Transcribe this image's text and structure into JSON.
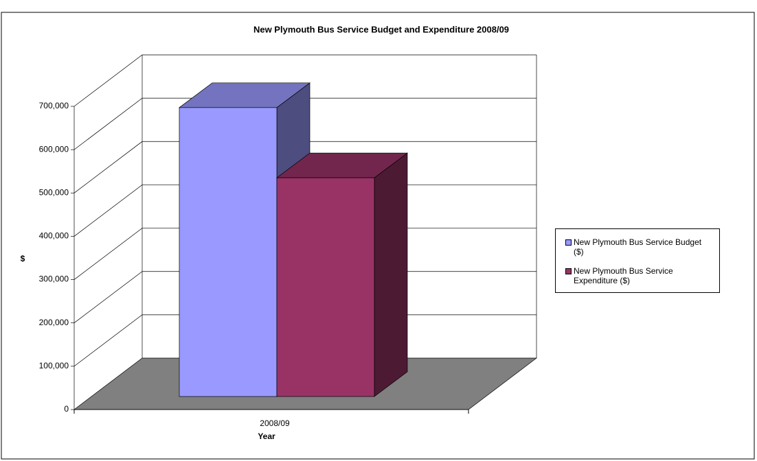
{
  "chart_data": {
    "type": "bar3d",
    "title": "New Plymouth Bus Service Budget and Expenditure 2008/09",
    "categories": [
      "2008/09"
    ],
    "xlabel": "Year",
    "ylabel": "$",
    "series": [
      {
        "name": "New Plymouth Bus Service Budget ($)",
        "color": "#9999ff",
        "values": [
          667000
        ]
      },
      {
        "name": "New Plymouth Bus Service Expenditure ($)",
        "color": "#993366",
        "values": [
          505000
        ]
      }
    ],
    "ylim": [
      0,
      700000
    ],
    "yticks": [
      0,
      {
        "value": 100000,
        "label": "100,000"
      },
      {
        "value": 200000,
        "label": "200,000"
      },
      {
        "value": 300000,
        "label": "300,000"
      },
      {
        "value": 400000,
        "label": "400,000"
      },
      {
        "value": 500000,
        "label": "500,000"
      },
      {
        "value": 600000,
        "label": "600,000"
      },
      {
        "value": 700000,
        "label": "700,000"
      }
    ],
    "grid": true
  }
}
